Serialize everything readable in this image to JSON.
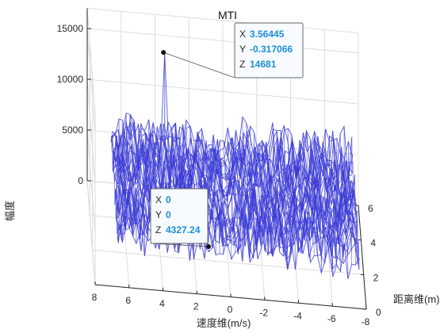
{
  "chart_data": {
    "type": "surface",
    "title": "MTI",
    "xlabel": "速度维(m/s)",
    "ylabel": "距离维(m)",
    "zlabel": "幅度",
    "xlim": [
      -8,
      8
    ],
    "ylim": [
      0,
      6
    ],
    "zlim": [
      0,
      17000
    ],
    "x_ticks": [
      "8",
      "6",
      "4",
      "2",
      "0",
      "-2",
      "-4",
      "-6",
      "-8"
    ],
    "y_ticks": [
      "0",
      "2",
      "4",
      "6"
    ],
    "z_ticks": [
      "0",
      "5000",
      "10000",
      "15000"
    ],
    "grid": true,
    "surface_color": "#3b3bd6",
    "noise_floor_approx": 7000,
    "peak": {
      "x": 3.56445,
      "y": -0.317066,
      "z": 14681
    },
    "datatips": [
      {
        "x_label": "X",
        "x": "3.56445",
        "y_label": "Y",
        "y": "-0.317066",
        "z_label": "Z",
        "z": "14681"
      },
      {
        "x_label": "X",
        "x": "0",
        "y_label": "Y",
        "y": "0",
        "z_label": "Z",
        "z": "4327.24"
      }
    ]
  }
}
